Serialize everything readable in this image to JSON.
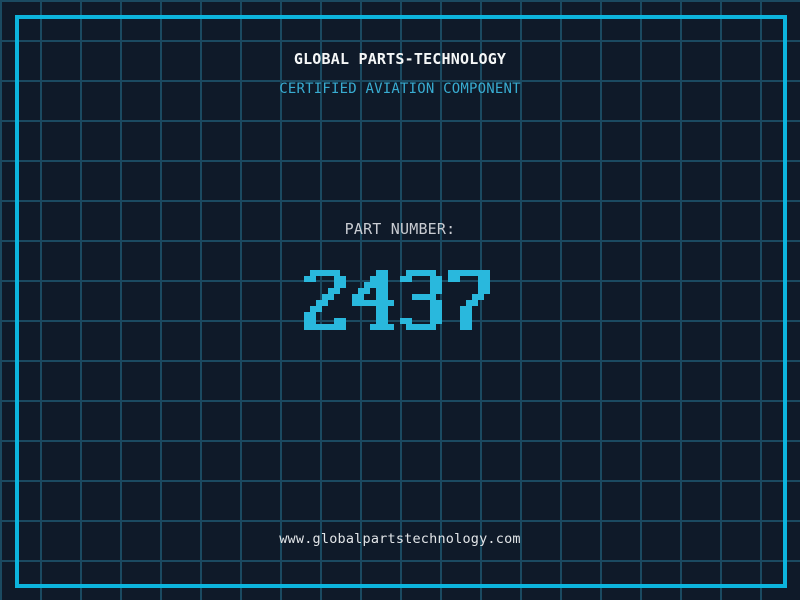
{
  "header": {
    "title": "GLOBAL PARTS-TECHNOLOGY",
    "subtitle": "CERTIFIED AVIATION COMPONENT"
  },
  "part": {
    "label": "PART NUMBER:",
    "number": "2437"
  },
  "footer": {
    "url": "www.globalpartstechnology.com"
  },
  "colors": {
    "background": "#0f1a29",
    "grid_line": "#1b4a61",
    "border_accent": "#0cb3dc",
    "digit_accent": "#29b8dd",
    "subtitle_accent": "#38acd1",
    "title_text": "#f5f7f7",
    "label_text": "#c9ccd2",
    "url_text": "#e2e5e8"
  }
}
